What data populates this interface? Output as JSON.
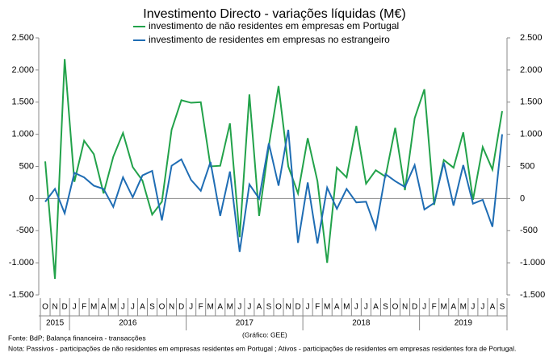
{
  "chart_data": {
    "type": "line",
    "title": "Investimento Directo - variações líquidas (M€)",
    "category_groups": [
      {
        "label": "2015",
        "categories": [
          "O",
          "N",
          "D"
        ]
      },
      {
        "label": "2016",
        "categories": [
          "J",
          "F",
          "M",
          "A",
          "M",
          "J",
          "J",
          "A",
          "S",
          "O",
          "N",
          "D"
        ]
      },
      {
        "label": "2017",
        "categories": [
          "J",
          "F",
          "M",
          "A",
          "M",
          "J",
          "J",
          "A",
          "S",
          "O",
          "N",
          "D"
        ]
      },
      {
        "label": "2018",
        "categories": [
          "J",
          "F",
          "M",
          "A",
          "M",
          "J",
          "J",
          "A",
          "S",
          "O",
          "N",
          "D"
        ]
      },
      {
        "label": "2019",
        "categories": [
          "J",
          "F",
          "M",
          "A",
          "M",
          "J",
          "J",
          "A",
          "S"
        ]
      }
    ],
    "series": [
      {
        "name": "investimento de não residentes em empresas em Portugal",
        "color": "#22a24a",
        "values": [
          578,
          -1250,
          2170,
          260,
          900,
          690,
          80,
          650,
          1020,
          490,
          280,
          -250,
          -50,
          1070,
          1530,
          1490,
          1500,
          500,
          510,
          1170,
          -600,
          1620,
          -270,
          820,
          1750,
          500,
          80,
          940,
          270,
          -1000,
          480,
          330,
          1130,
          230,
          440,
          340,
          1100,
          130,
          1250,
          1700,
          -100,
          600,
          480,
          1030,
          -20,
          800,
          450,
          1360
        ]
      },
      {
        "name": "investimento de residentes em empresas no estrangeiro",
        "color": "#1f6db4",
        "values": [
          -50,
          150,
          -230,
          400,
          330,
          200,
          150,
          -130,
          330,
          20,
          360,
          430,
          -340,
          510,
          610,
          290,
          120,
          570,
          -270,
          420,
          -830,
          220,
          0,
          860,
          200,
          1070,
          -690,
          250,
          -700,
          170,
          -160,
          150,
          -60,
          -50,
          -470,
          380,
          270,
          180,
          520,
          -170,
          -70,
          560,
          -110,
          520,
          -80,
          -20,
          -440,
          1000
        ]
      }
    ],
    "ylim": [
      -1500,
      2500
    ],
    "yticks": [
      {
        "value": 2500,
        "label": "2.500"
      },
      {
        "value": 2000,
        "label": "2.000"
      },
      {
        "value": 1500,
        "label": "1.500"
      },
      {
        "value": 1000,
        "label": "1.000"
      },
      {
        "value": 500,
        "label": "500"
      },
      0,
      {
        "value": -500,
        "label": "-500"
      },
      {
        "value": -1000,
        "label": "-1.000"
      },
      {
        "value": -1500,
        "label": "-1.500"
      }
    ],
    "y2lim": [
      -1500,
      2500
    ],
    "y2ticks": [
      {
        "value": 2500,
        "label": "2.500"
      },
      {
        "value": 2000,
        "label": "2.000"
      },
      {
        "value": 1500,
        "label": "1.500"
      },
      {
        "value": 1000,
        "label": "1.000"
      },
      {
        "value": 500,
        "label": "500"
      },
      0,
      {
        "value": -500,
        "label": "-500"
      },
      {
        "value": -1000,
        "label": "-1.000"
      },
      {
        "value": -1500,
        "label": "-1.500"
      }
    ],
    "grid": false,
    "source": "Fonte: BdP; Balança financeira - transacções",
    "credit": "(Gráfico: GEE)",
    "note": "Nota: Passivos - participações de não residentes em empresas residentes em Portugal ; Ativos - participações de residentes em empresas residentes fora de Portugal."
  }
}
